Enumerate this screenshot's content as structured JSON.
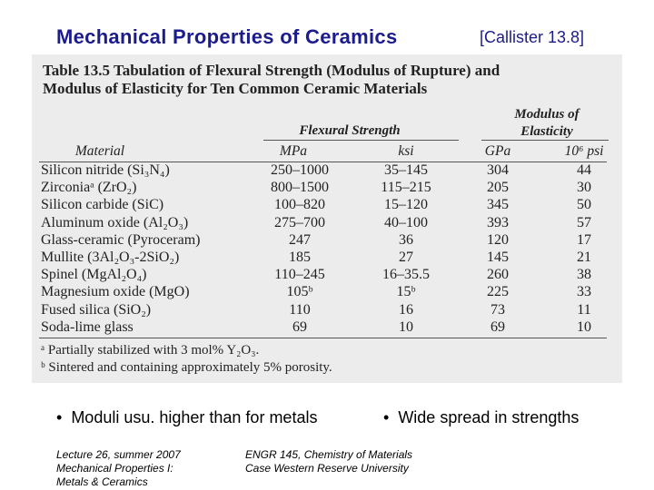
{
  "slide": {
    "title": "Mechanical Properties of Ceramics",
    "source": "[Callister 13.8]",
    "table": {
      "caption_line1": "Table 13.5   Tabulation of Flexural Strength (Modulus of Rupture) and",
      "caption_line2": "Modulus of Elasticity for Ten Common Ceramic Materials",
      "group_headers": [
        "Flexural Strength",
        "Modulus of",
        "Elasticity"
      ],
      "columns": [
        "Material",
        "MPa",
        "ksi",
        "GPa",
        "10⁶ psi"
      ],
      "rows": [
        [
          "Silicon nitride (Si₃N₄)",
          "250–1000",
          "35–145",
          "304",
          "44"
        ],
        [
          "Zirconiaᵃ (ZrO₂)",
          "800–1500",
          "115–215",
          "205",
          "30"
        ],
        [
          "Silicon carbide (SiC)",
          "100–820",
          "15–120",
          "345",
          "50"
        ],
        [
          "Aluminum oxide (Al₂O₃)",
          "275–700",
          "40–100",
          "393",
          "57"
        ],
        [
          "Glass-ceramic (Pyroceram)",
          "247",
          "36",
          "120",
          "17"
        ],
        [
          "Mullite (3Al₂O₃-2SiO₂)",
          "185",
          "27",
          "145",
          "21"
        ],
        [
          "Spinel (MgAl₂O₄)",
          "110–245",
          "16–35.5",
          "260",
          "38"
        ],
        [
          "Magnesium oxide (MgO)",
          "105ᵇ",
          "15ᵇ",
          "225",
          "33"
        ],
        [
          "Fused silica (SiO₂)",
          "110",
          "16",
          "73",
          "11"
        ],
        [
          "Soda-lime glass",
          "69",
          "10",
          "69",
          "10"
        ]
      ],
      "footnotes": [
        "ᵃ Partially stabilized with 3 mol% Y₂O₃.",
        "ᵇ Sintered and containing approximately 5% porosity."
      ]
    },
    "bullets": [
      "Moduli usu. higher than for metals",
      "Wide spread in strengths"
    ],
    "footer_left": [
      "Lecture 26, summer 2007",
      "Mechanical Properties I:",
      "Metals & Ceramics"
    ],
    "footer_right": [
      "ENGR 145, Chemistry of Materials",
      "Case Western Reserve University"
    ]
  }
}
